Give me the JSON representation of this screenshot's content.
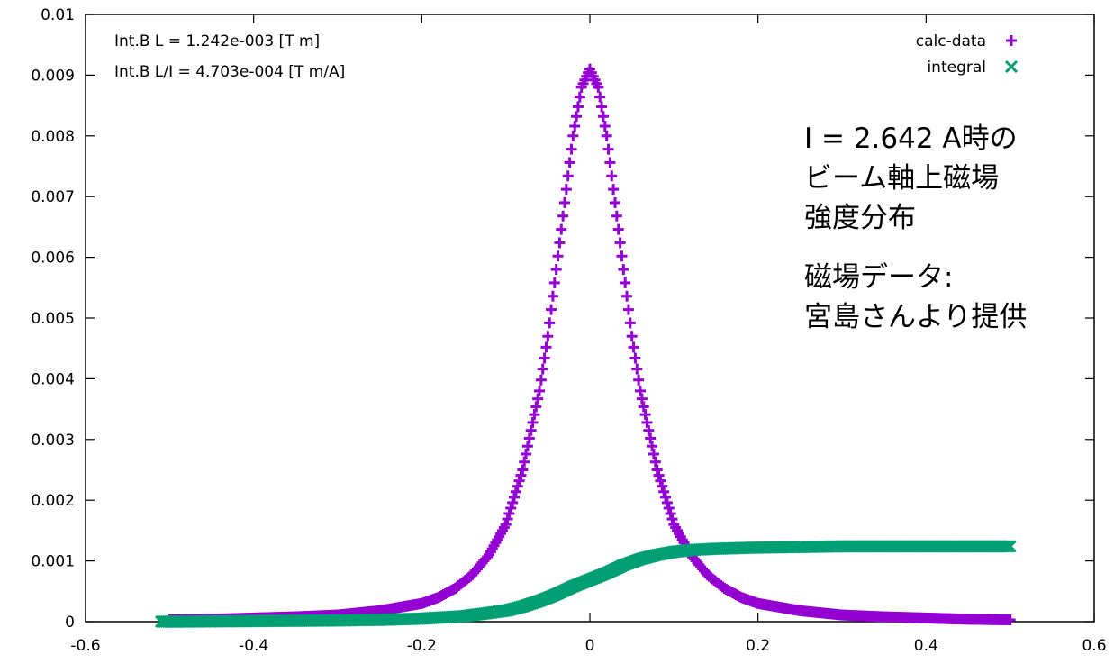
{
  "chart_data": {
    "type": "scatter",
    "xlim": [
      -0.6,
      0.6
    ],
    "ylim": [
      0,
      0.01
    ],
    "x_ticks": [
      "-0.6",
      "-0.4",
      "-0.2",
      "0",
      "0.2",
      "0.4",
      "0.6"
    ],
    "y_ticks": [
      "0",
      "0.001",
      "0.002",
      "0.003",
      "0.004",
      "0.005",
      "0.006",
      "0.007",
      "0.008",
      "0.009",
      "0.01"
    ],
    "grid": false,
    "legend_position": "top-right",
    "annotations": [
      "Int.B L = 1.242e-003  [T m]",
      "Int.B L/I = 4.703e-004  [T m/A]"
    ],
    "series": [
      {
        "name": "calc-data",
        "marker": "+",
        "color": "#9400D3",
        "x": [
          -0.5,
          -0.45,
          -0.4,
          -0.35,
          -0.3,
          -0.25,
          -0.2,
          -0.18,
          -0.16,
          -0.14,
          -0.12,
          -0.1,
          -0.08,
          -0.06,
          -0.05,
          -0.04,
          -0.03,
          -0.02,
          -0.01,
          0,
          0.01,
          0.02,
          0.03,
          0.04,
          0.05,
          0.06,
          0.08,
          0.1,
          0.12,
          0.14,
          0.16,
          0.18,
          0.2,
          0.25,
          0.3,
          0.35,
          0.4,
          0.45,
          0.5
        ],
        "y": [
          3e-05,
          4e-05,
          6e-05,
          8e-05,
          0.00011,
          0.00018,
          0.0003,
          0.0004,
          0.00055,
          0.00077,
          0.0011,
          0.0016,
          0.0025,
          0.0038,
          0.0047,
          0.0058,
          0.0069,
          0.008,
          0.0088,
          0.0091,
          0.0088,
          0.008,
          0.0069,
          0.0058,
          0.0047,
          0.0038,
          0.0025,
          0.0016,
          0.0011,
          0.00077,
          0.00055,
          0.0004,
          0.0003,
          0.00018,
          0.00011,
          8e-05,
          6e-05,
          4e-05,
          3e-05
        ]
      },
      {
        "name": "integral",
        "marker": "x",
        "color": "#009E73",
        "x": [
          -0.51,
          -0.45,
          -0.4,
          -0.35,
          -0.3,
          -0.25,
          -0.2,
          -0.15,
          -0.1,
          -0.08,
          -0.06,
          -0.04,
          -0.02,
          0,
          0.02,
          0.04,
          0.06,
          0.08,
          0.1,
          0.12,
          0.15,
          0.2,
          0.25,
          0.3,
          0.35,
          0.4,
          0.45,
          0.5
        ],
        "y": [
          0,
          5e-06,
          1e-05,
          1.5e-05,
          2e-05,
          3e-05,
          5e-05,
          9e-05,
          0.00018,
          0.00025,
          0.00034,
          0.00045,
          0.00058,
          0.00069,
          0.0008,
          0.00093,
          0.00103,
          0.0011,
          0.00115,
          0.00118,
          0.0012,
          0.00122,
          0.00123,
          0.00124,
          0.00124,
          0.00124,
          0.00124,
          0.00124
        ]
      }
    ]
  },
  "note": {
    "line1": "I = 2.642 A時の",
    "line2": "ビーム軸上磁場",
    "line3": "強度分布",
    "line4": "磁場データ:",
    "line5": "宮島さんより提供"
  }
}
